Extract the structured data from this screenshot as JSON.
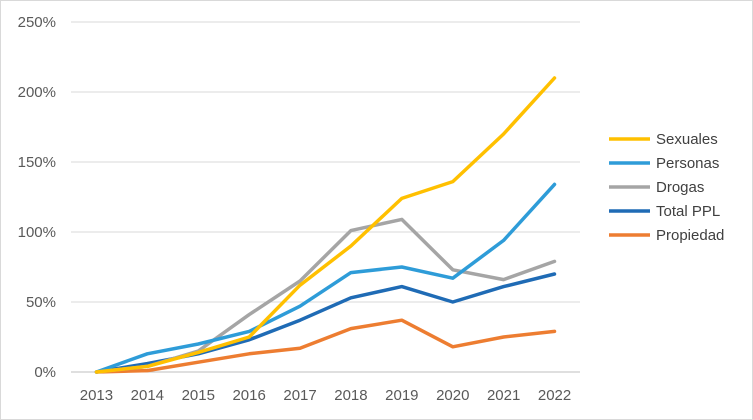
{
  "chart_data": {
    "type": "line",
    "title": "",
    "xlabel": "",
    "ylabel": "",
    "categories": [
      "2013",
      "2014",
      "2015",
      "2016",
      "2017",
      "2018",
      "2019",
      "2020",
      "2021",
      "2022"
    ],
    "ylim": [
      0,
      250
    ],
    "yticks": [
      "0%",
      "50%",
      "100%",
      "150%",
      "200%",
      "250%"
    ],
    "grid": true,
    "legend_position": "right",
    "series": [
      {
        "name": "Sexuales",
        "color": "#FFC000",
        "values": [
          0,
          4,
          14,
          25,
          62,
          90,
          124,
          136,
          170,
          210
        ]
      },
      {
        "name": "Personas",
        "color": "#2E9CD8",
        "values": [
          0,
          13,
          20,
          29,
          47,
          71,
          75,
          67,
          94,
          134
        ]
      },
      {
        "name": "Drogas",
        "color": "#A5A5A5",
        "values": [
          0,
          4,
          15,
          41,
          65,
          101,
          109,
          73,
          66,
          79
        ]
      },
      {
        "name": "Total PPL",
        "color": "#1F6BB5",
        "values": [
          0,
          6,
          13,
          23,
          37,
          53,
          61,
          50,
          61,
          70
        ]
      },
      {
        "name": "Propiedad",
        "color": "#ED7D31",
        "values": [
          0,
          1,
          7,
          13,
          17,
          31,
          37,
          18,
          25,
          29
        ]
      }
    ]
  }
}
